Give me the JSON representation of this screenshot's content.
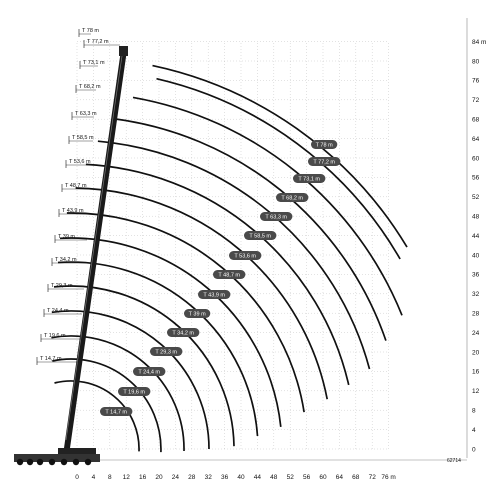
{
  "diagram": {
    "x_ticks": [
      "0",
      "4",
      "8",
      "12",
      "16",
      "20",
      "24",
      "28",
      "32",
      "36",
      "40",
      "44",
      "48",
      "52",
      "56",
      "60",
      "64",
      "68",
      "72",
      "76 m"
    ],
    "y_ticks": [
      "0",
      "4",
      "8",
      "12",
      "16",
      "20",
      "24",
      "28",
      "32",
      "36",
      "40",
      "44",
      "48",
      "52",
      "56",
      "60",
      "64",
      "68",
      "72",
      "76",
      "80",
      "84 m"
    ],
    "boom_labels": [
      "T 78 m",
      "T 77,2 m",
      "T 73,1 m",
      "T 68,2 m",
      "T 63,3 m",
      "T 58,5 m",
      "T 53,6 m",
      "T 48,7 m",
      "T 43,9 m",
      "T 39 m",
      "T 34,2 m",
      "T 29,3 m",
      "T 24,4 m",
      "T 19,6 m",
      "T 14,7 m"
    ],
    "curve_labels": [
      "T 78 m",
      "T 77,2 m",
      "T 73,1 m",
      "T 68,2 m",
      "T 63,3 m",
      "T 58,5 m",
      "T 53,6 m",
      "T 48,7 m",
      "T 43,9 m",
      "T 39 m",
      "T 34,2 m",
      "T 29,3 m",
      "T 24,4 m",
      "T 19,6 m",
      "T 14,7 m"
    ],
    "figure_code": "62714",
    "colors": {
      "curve": "#111111",
      "label_fill": "#4a4a4a",
      "grid": "#9a9a9a"
    }
  }
}
